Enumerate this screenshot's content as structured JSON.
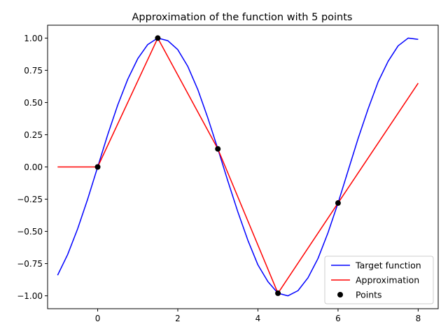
{
  "chart_data": {
    "type": "line",
    "title": "Approximation of the function with 5 points",
    "xlabel": "",
    "ylabel": "",
    "xlim": [
      -1.25,
      8.5
    ],
    "ylim": [
      -1.1,
      1.1
    ],
    "xticks": [
      0,
      2,
      4,
      6,
      8
    ],
    "xtick_labels": [
      "0",
      "2",
      "4",
      "6",
      "8"
    ],
    "yticks": [
      1.0,
      0.75,
      0.5,
      0.25,
      0.0,
      -0.25,
      -0.5,
      -0.75,
      -1.0
    ],
    "ytick_labels": [
      "1.00",
      "0.75",
      "0.50",
      "0.25",
      "0.00",
      "−0.25",
      "−0.50",
      "−0.75",
      "−1.00"
    ],
    "grid": false,
    "legend_position": "lower-right",
    "series": [
      {
        "name": "Target function",
        "kind": "line",
        "color": "#0000ff",
        "x": [
          -1,
          -0.75,
          -0.5,
          -0.25,
          0,
          0.25,
          0.5,
          0.75,
          1,
          1.25,
          1.5,
          1.75,
          2,
          2.25,
          2.5,
          2.75,
          3,
          3.25,
          3.5,
          3.75,
          4,
          4.25,
          4.5,
          4.75,
          5,
          5.25,
          5.5,
          5.75,
          6,
          6.25,
          6.5,
          6.75,
          7,
          7.25,
          7.5,
          7.75,
          8
        ],
        "y": [
          -0.84,
          -0.68,
          -0.48,
          -0.25,
          0.0,
          0.25,
          0.48,
          0.68,
          0.84,
          0.95,
          1.0,
          0.98,
          0.91,
          0.78,
          0.6,
          0.38,
          0.14,
          -0.11,
          -0.35,
          -0.57,
          -0.76,
          -0.89,
          -0.98,
          -1.0,
          -0.96,
          -0.86,
          -0.71,
          -0.51,
          -0.28,
          -0.03,
          0.22,
          0.45,
          0.66,
          0.82,
          0.94,
          1.0,
          0.99
        ]
      },
      {
        "name": "Approximation",
        "kind": "line",
        "color": "#ff0000",
        "x": [
          -1,
          0,
          1.5,
          3,
          4.5,
          6,
          8
        ],
        "y": [
          0.0,
          0.0,
          1.0,
          0.14,
          -0.98,
          -0.28,
          0.65
        ]
      },
      {
        "name": "Points",
        "kind": "scatter",
        "color": "#000000",
        "x": [
          0,
          1.5,
          3,
          4.5,
          6
        ],
        "y": [
          0.0,
          1.0,
          0.14,
          -0.98,
          -0.28
        ]
      }
    ]
  }
}
